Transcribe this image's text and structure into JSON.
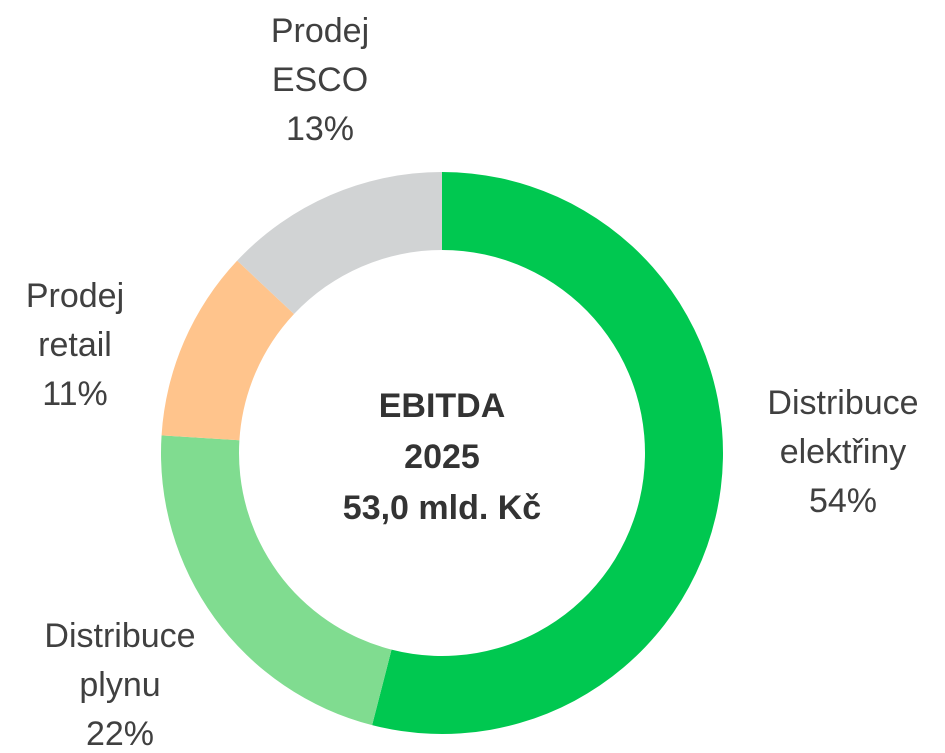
{
  "chart_data": {
    "type": "donut",
    "categories": [
      [
        "Distribuce",
        "elektřiny"
      ],
      [
        "Distribuce",
        "plynu"
      ],
      [
        "Prodej",
        "retail"
      ],
      [
        "Prodej",
        "ESCO"
      ]
    ],
    "values": [
      54,
      22,
      11,
      13
    ],
    "value_labels": [
      "54%",
      "22%",
      "11%",
      "13%"
    ],
    "colors": [
      "#00c850",
      "#80dc90",
      "#ffc48c",
      "#d1d3d4"
    ],
    "center_text": [
      "EBITDA",
      "2025",
      "53,0 mld. Kč"
    ]
  }
}
